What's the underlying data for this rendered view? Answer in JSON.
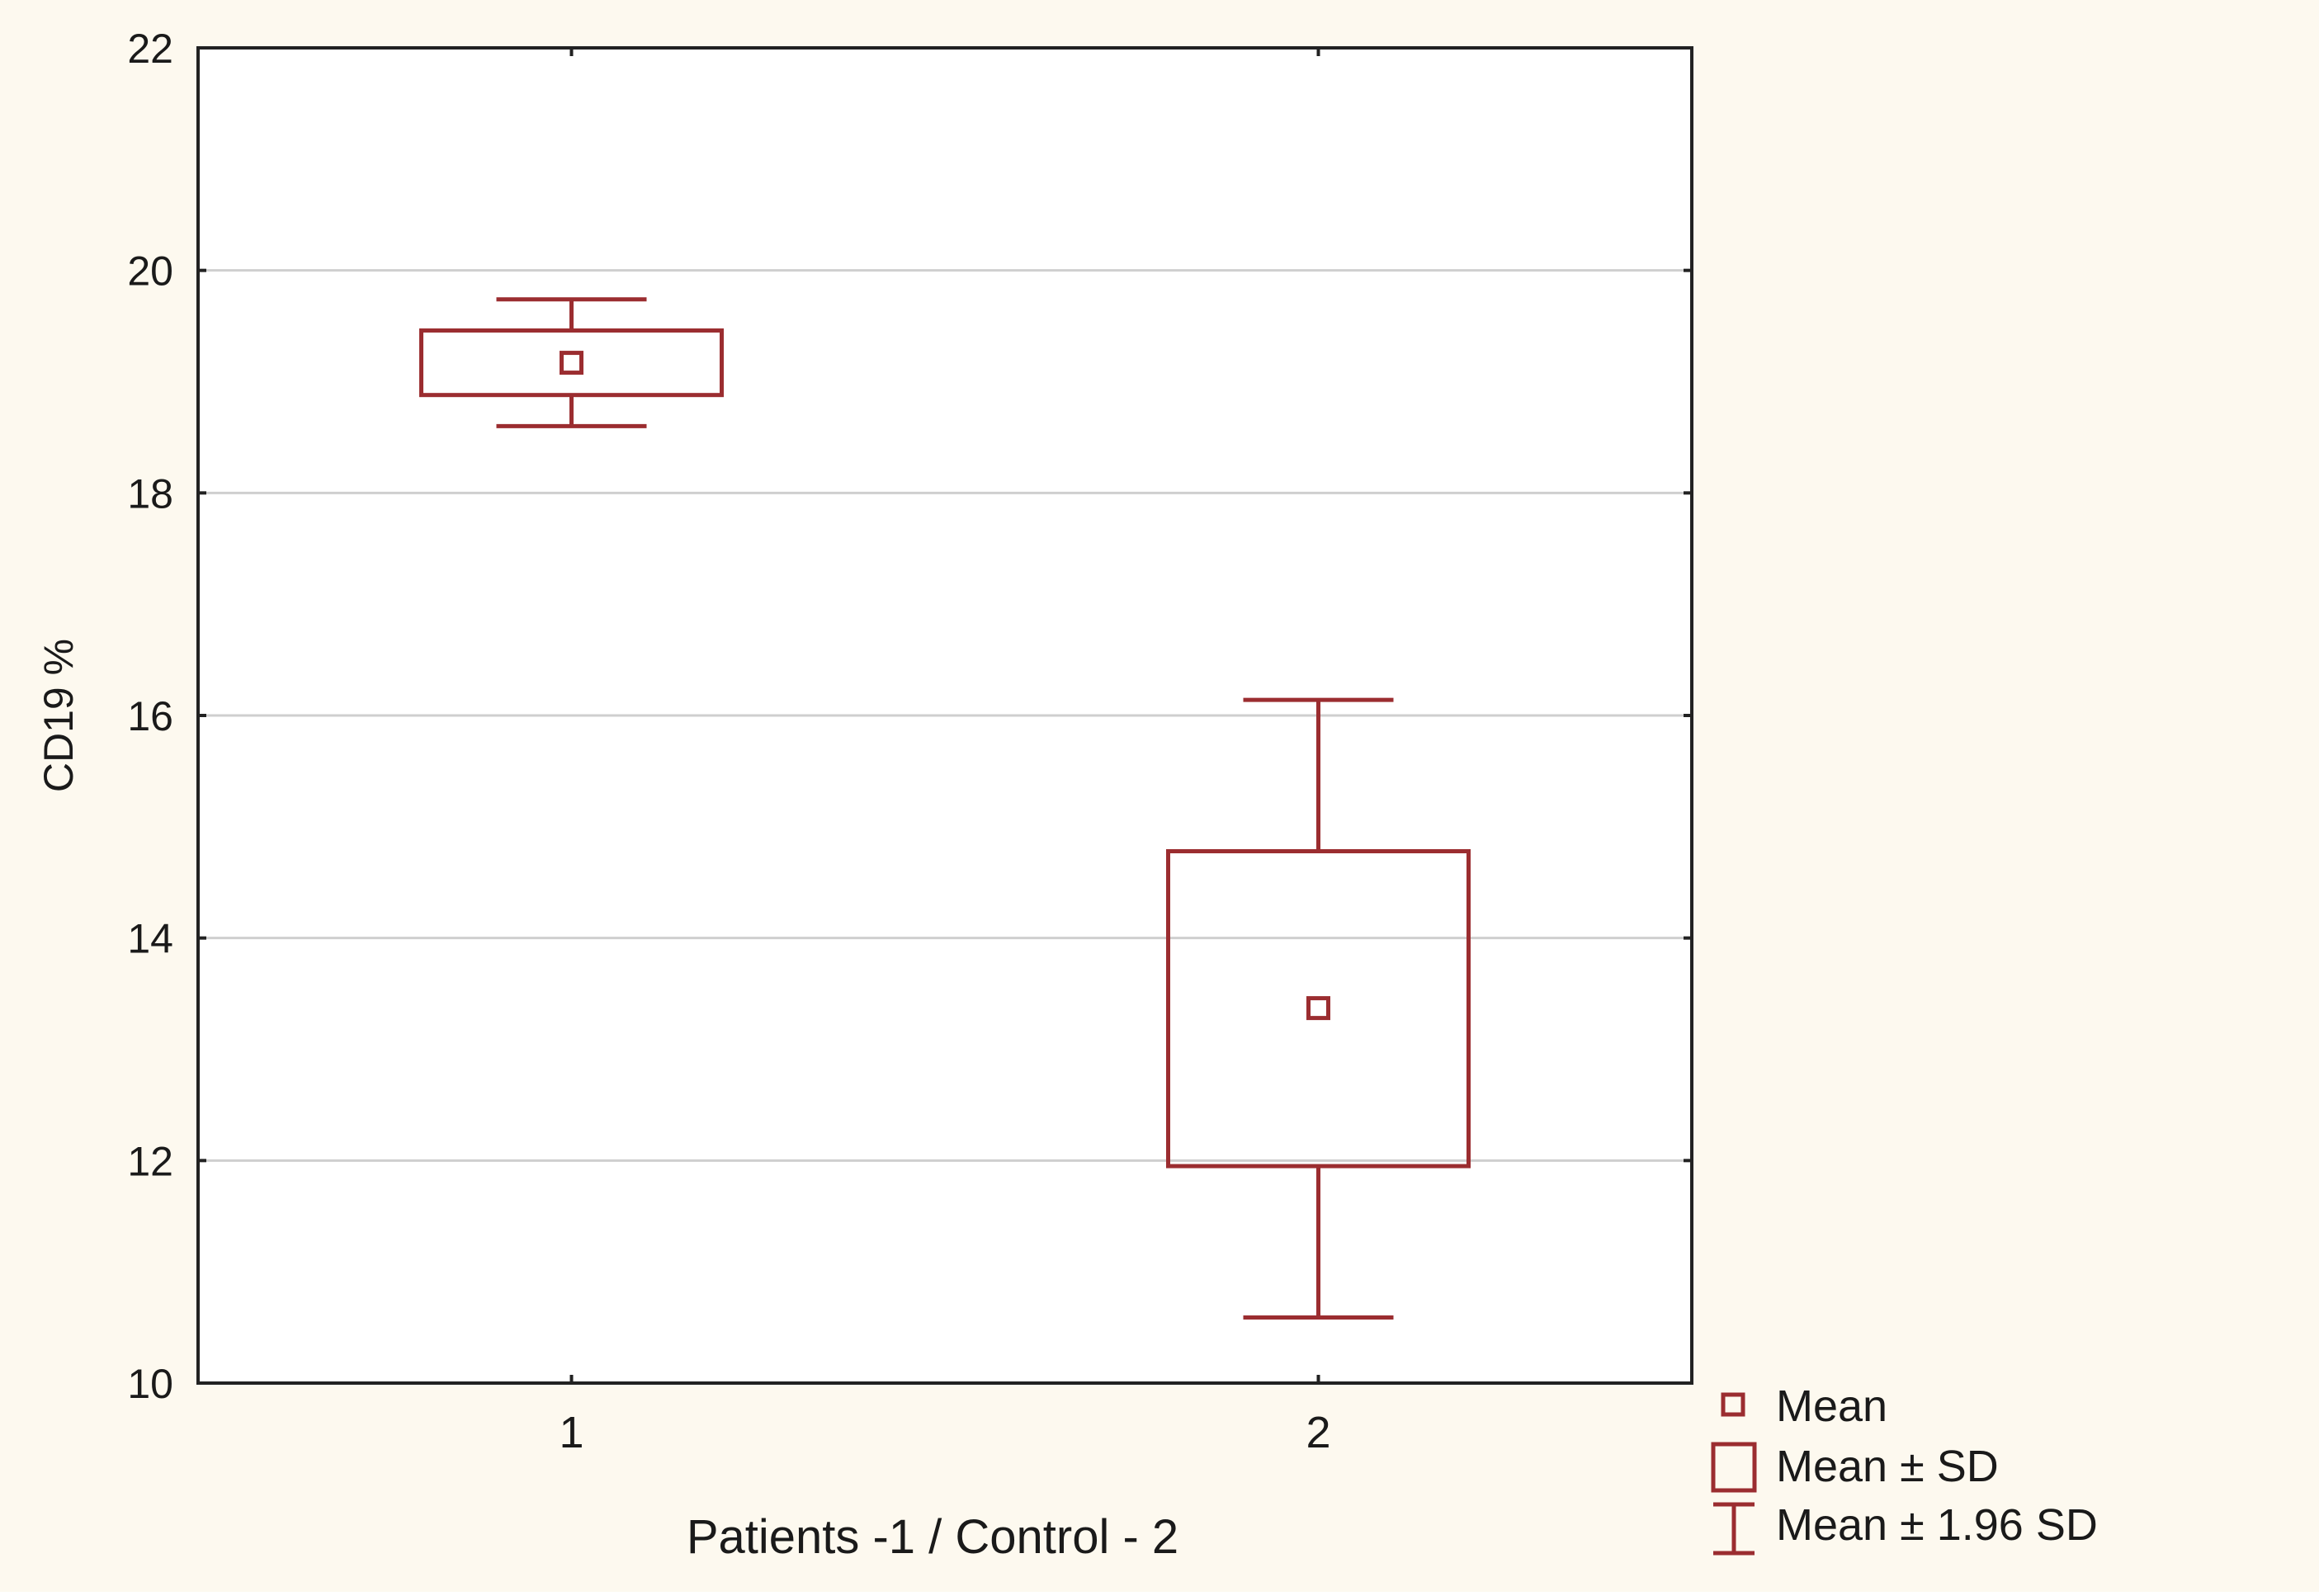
{
  "colors": {
    "background": "#fdf9ef",
    "plot_background": "#ffffff",
    "series": "#9b2d30",
    "grid": "#cfcfcf",
    "axis": "#222222",
    "text": "#1a1a1a"
  },
  "chart_data": {
    "type": "box",
    "title": "",
    "xlabel": "Patients -1 / Control - 2",
    "ylabel": "CD19 %",
    "ylim": [
      10,
      22
    ],
    "yticks": [
      "10",
      "12",
      "14",
      "16",
      "18",
      "20",
      "22"
    ],
    "grid": true,
    "categories": [
      "1",
      "2"
    ],
    "boxes": [
      {
        "category": "1",
        "mean": 19.17,
        "sd_low": 18.88,
        "sd_high": 19.46,
        "ci_low": 18.6,
        "ci_high": 19.74
      },
      {
        "category": "2",
        "mean": 13.37,
        "sd_low": 11.95,
        "sd_high": 14.78,
        "ci_low": 10.59,
        "ci_high": 16.14
      }
    ],
    "legend": {
      "position": "bottom-right",
      "entries": [
        "Mean",
        "Mean ± SD",
        "Mean ± 1.96 SD"
      ]
    }
  }
}
